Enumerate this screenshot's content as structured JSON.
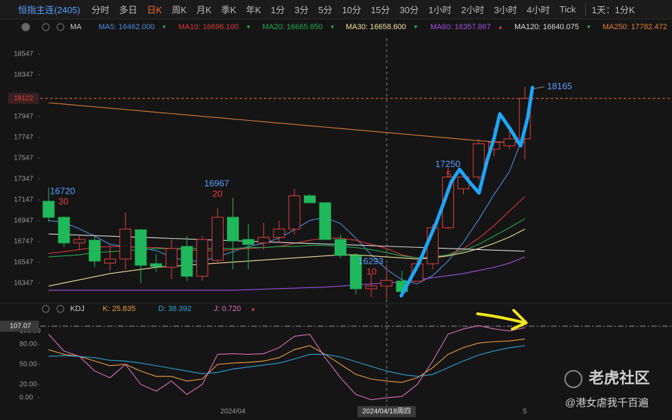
{
  "toolbar": {
    "symbol": "恒指主连(2405)",
    "tabs": [
      "分时",
      "多日",
      "日K",
      "周K",
      "月K",
      "季K",
      "年K",
      "1分",
      "3分",
      "5分",
      "10分",
      "15分",
      "30分",
      "1小时",
      "2小时",
      "3小时",
      "4小时",
      "Tick"
    ],
    "active": 2,
    "dropdown": "1天：1分K"
  },
  "watermark": {
    "brand": "老虎社区",
    "user": "@港女虐我千百遍"
  },
  "chart_data": [
    {
      "type": "candlestick",
      "indicator": "MA",
      "ylim": [
        16187,
        18700
      ],
      "yticks": [
        16347,
        16547,
        16747,
        16947,
        17147,
        17347,
        17547,
        17747,
        17947,
        18347,
        18547
      ],
      "last_price": 18122,
      "open": [
        17134,
        16980,
        16734,
        16760,
        16540,
        16580,
        16860,
        16534,
        16500,
        16700,
        16414,
        16567,
        16980,
        16767,
        16734,
        16787,
        16867,
        17187,
        17120,
        16767,
        16614,
        16294,
        16320,
        16367,
        16367,
        16534,
        16880,
        17254,
        17367,
        17634,
        17667,
        17734
      ],
      "high": [
        17267,
        16987,
        16800,
        16800,
        16705,
        17027,
        16867,
        16627,
        16767,
        16800,
        16800,
        17067,
        17167,
        16914,
        16927,
        16947,
        17254,
        17200,
        17120,
        16814,
        16634,
        16434,
        16527,
        16467,
        16567,
        16914,
        17454,
        17414,
        17734,
        17834,
        17867,
        18234
      ],
      "low": [
        16934,
        16694,
        16667,
        16500,
        16467,
        16480,
        16347,
        16454,
        16387,
        16367,
        16374,
        16534,
        16480,
        16480,
        16667,
        16734,
        16814,
        17134,
        16767,
        16587,
        16240,
        16214,
        16200,
        16214,
        16367,
        16480,
        16867,
        17201,
        17334,
        17567,
        17634,
        17534
      ],
      "close": [
        16980,
        16734,
        16767,
        16560,
        16580,
        16867,
        16520,
        16507,
        16680,
        16414,
        16767,
        16980,
        16753,
        16720,
        16787,
        16867,
        17187,
        17120,
        16767,
        16614,
        16294,
        16320,
        16374,
        16267,
        16534,
        16880,
        17367,
        17367,
        17687,
        17700,
        17734,
        18122
      ],
      "up_color": "#e8403e",
      "down_color": "#1fb85a",
      "series": [
        {
          "name": "MA5",
          "label": "MA5: 16462.000",
          "trend": "▾",
          "color": "#4a8fe0",
          "values": [
            16950,
            16930,
            16870,
            16800,
            16720,
            16700,
            16690,
            16660,
            16600,
            16560,
            16560,
            16600,
            16650,
            16700,
            16730,
            16780,
            16860,
            16950,
            16980,
            16920,
            16780,
            16620,
            16480,
            16380,
            16340,
            16420,
            16560,
            16740,
            16960,
            17200,
            17420,
            17800
          ]
        },
        {
          "name": "MA10",
          "label": "MA10: 16696.100",
          "trend": "▾",
          "color": "#d83a3a",
          "values": [
            16634,
            16650,
            16670,
            16690,
            16700,
            16700,
            16690,
            16690,
            16680,
            16670,
            16660,
            16660,
            16670,
            16680,
            16690,
            16700,
            16730,
            16760,
            16780,
            16780,
            16760,
            16720,
            16680,
            16620,
            16590,
            16590,
            16620,
            16680,
            16780,
            16900,
            17040,
            17180
          ]
        },
        {
          "name": "MA20",
          "label": "MA20: 16665.650",
          "trend": "▾",
          "color": "#22aa4e",
          "values": [
            16600,
            16610,
            16620,
            16640,
            16650,
            16660,
            16670,
            16680,
            16680,
            16680,
            16680,
            16680,
            16680,
            16690,
            16690,
            16700,
            16700,
            16710,
            16710,
            16700,
            16690,
            16670,
            16640,
            16610,
            16590,
            16600,
            16620,
            16660,
            16720,
            16800,
            16880,
            16967
          ]
        },
        {
          "name": "MA30",
          "label": "MA30: 16658.600",
          "trend": "▾",
          "color": "#f2e39a",
          "values": [
            16320,
            16350,
            16380,
            16410,
            16440,
            16460,
            16480,
            16500,
            16510,
            16520,
            16530,
            16540,
            16550,
            16560,
            16570,
            16580,
            16590,
            16600,
            16610,
            16620,
            16620,
            16610,
            16600,
            16590,
            16580,
            16590,
            16610,
            16640,
            16680,
            16730,
            16790,
            16867
          ]
        },
        {
          "name": "MA60",
          "label": "MA60: 16357.867",
          "trend": "▴",
          "color": "#a052e0",
          "values": [
            16280,
            16280,
            16280,
            16280,
            16280,
            16280,
            16280,
            16280,
            16280,
            16280,
            16280,
            16280,
            16280,
            16285,
            16290,
            16295,
            16300,
            16305,
            16310,
            16320,
            16330,
            16340,
            16350,
            16360,
            16380,
            16400,
            16420,
            16440,
            16470,
            16500,
            16540,
            16600
          ]
        },
        {
          "name": "MA120",
          "label": "MA120: 16640.075",
          "trend": "▾",
          "color": "#dddddd",
          "values": [
            16820,
            16815,
            16809,
            16804,
            16799,
            16793,
            16788,
            16783,
            16777,
            16772,
            16766,
            16761,
            16756,
            16750,
            16745,
            16740,
            16734,
            16729,
            16724,
            16718,
            16713,
            16708,
            16702,
            16697,
            16692,
            16686,
            16681,
            16676,
            16670,
            16665,
            16660,
            16654
          ]
        },
        {
          "name": "MA250",
          "label": "MA250: 17782.472",
          "trend": "▾",
          "color": "#e0803a",
          "values": [
            18080,
            18067,
            18054,
            18041,
            18028,
            18015,
            18002,
            17989,
            17976,
            17963,
            17950,
            17937,
            17924,
            17911,
            17898,
            17885,
            17872,
            17859,
            17846,
            17833,
            17820,
            17807,
            17794,
            17781,
            17768,
            17755,
            17742,
            17729,
            17716,
            17705,
            17700,
            17700
          ]
        }
      ],
      "annotations": [
        {
          "text": "16720",
          "sub": "30"
        },
        {
          "text": "16967",
          "sub": "20"
        },
        {
          "text": "16293",
          "sub": "10"
        },
        {
          "text": "17250",
          "sub": "5"
        },
        {
          "text": "18165"
        }
      ]
    },
    {
      "type": "line",
      "indicator": "KDJ",
      "categories": [
        null,
        null,
        null,
        null,
        null,
        null,
        null,
        null,
        null,
        null,
        null,
        null,
        "2024/04",
        null,
        null,
        null,
        null,
        null,
        null,
        null,
        null,
        null,
        "2024/04/18周四",
        null,
        null,
        null,
        null,
        null,
        null,
        null,
        null,
        "5"
      ],
      "ylim": [
        -17.7,
        115.3
      ],
      "yticks": [
        {
          "value": 0,
          "label": "0.00"
        },
        {
          "value": 20,
          "label": "20.00"
        },
        {
          "value": 50,
          "label": "50.00"
        },
        {
          "value": 80,
          "label": "80.00"
        },
        {
          "value": 100,
          "label": "100.00"
        }
      ],
      "marker": 107.07,
      "series": [
        {
          "name": "K",
          "label": "K: 25.835",
          "color": "#f0a040",
          "values": [
            72,
            65,
            62,
            55,
            48,
            50,
            40,
            32,
            32,
            25,
            28,
            50,
            52,
            53,
            55,
            60,
            72,
            78,
            65,
            50,
            35,
            28,
            25,
            23,
            30,
            45,
            65,
            75,
            82,
            84,
            85,
            88
          ]
        },
        {
          "name": "D",
          "label": "D: 38.392",
          "color": "#2aa6d8",
          "values": [
            62,
            63,
            62,
            60,
            56,
            55,
            52,
            48,
            44,
            40,
            36,
            38,
            43,
            46,
            49,
            52,
            58,
            65,
            65,
            61,
            54,
            47,
            40,
            35,
            32,
            35,
            45,
            55,
            64,
            70,
            75,
            78
          ]
        },
        {
          "name": "J",
          "label": "J: 0.720",
          "trend": "▴",
          "color": "#e070c0",
          "values": [
            95,
            70,
            62,
            40,
            30,
            50,
            20,
            10,
            25,
            5,
            20,
            65,
            66,
            65,
            66,
            75,
            92,
            95,
            60,
            30,
            5,
            -3,
            0,
            2,
            20,
            55,
            95,
            103,
            108,
            103,
            100,
            105
          ]
        }
      ]
    }
  ]
}
